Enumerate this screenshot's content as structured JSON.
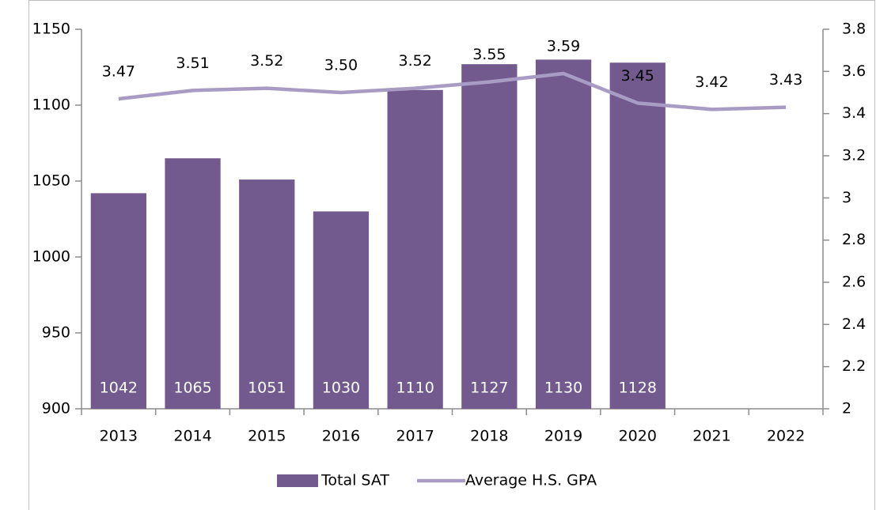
{
  "chart_data": {
    "type": "bar-line",
    "categories": [
      "2013",
      "2014",
      "2015",
      "2016",
      "2017",
      "2018",
      "2019",
      "2020",
      "2021",
      "2022"
    ],
    "series": [
      {
        "name": "Total SAT",
        "type": "bar",
        "color": "#725a8e",
        "values": [
          1042,
          1065,
          1051,
          1030,
          1110,
          1127,
          1130,
          1128,
          null,
          null
        ]
      },
      {
        "name": "Average H.S. GPA",
        "type": "line",
        "axis": "y2",
        "color": "#a99cc4",
        "values": [
          3.47,
          3.51,
          3.52,
          3.5,
          3.52,
          3.55,
          3.59,
          3.45,
          3.42,
          3.43
        ],
        "value_labels": [
          "3.47",
          "3.51",
          "3.52",
          "3.50",
          "3.52",
          "3.55",
          "3.59",
          "3.45",
          "3.42",
          "3.43"
        ]
      }
    ],
    "ylim": [
      900,
      1150
    ],
    "yticks": [
      900,
      950,
      1000,
      1050,
      1100,
      1150
    ],
    "y2lim": [
      2,
      3.8
    ],
    "y2ticks": [
      2,
      2.2,
      2.4,
      2.6,
      2.8,
      3,
      3.2,
      3.4,
      3.6,
      3.8
    ],
    "grid": false,
    "legend": "bottom"
  }
}
